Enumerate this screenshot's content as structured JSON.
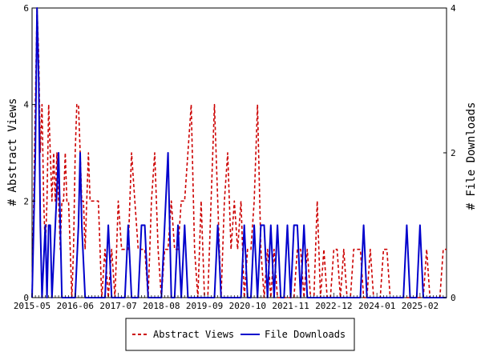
{
  "chart_data": {
    "type": "line",
    "title": "",
    "xlabel": "",
    "ylabel_left": "# Abstract Views",
    "ylabel_right": "# File Downloads",
    "x_tick_labels": [
      "2015-05",
      "2016-06",
      "2017-07",
      "2018-08",
      "2019-09",
      "2020-10",
      "2021-11",
      "2022-12",
      "2024-01",
      "2025-02"
    ],
    "y_left": {
      "ylim": [
        0,
        6
      ],
      "ticks": [
        0,
        2,
        4,
        6
      ]
    },
    "y_right": {
      "ylim": [
        0,
        4
      ],
      "ticks": [
        0,
        2,
        4
      ]
    },
    "x_months_span": [
      0,
      125
    ],
    "legend_position": "bottom-center",
    "grid": false,
    "series": [
      {
        "name": "Abstract Views",
        "axis": "left",
        "color": "#cc0000",
        "style": "dashed",
        "values": [
          [
            0,
            0
          ],
          [
            1,
            4
          ],
          [
            1.5,
            6
          ],
          [
            2,
            5
          ],
          [
            2.5,
            3
          ],
          [
            3,
            4
          ],
          [
            3.5,
            2
          ],
          [
            4,
            1
          ],
          [
            4.5,
            2
          ],
          [
            5,
            4
          ],
          [
            5.5,
            3
          ],
          [
            6,
            2
          ],
          [
            6.5,
            3
          ],
          [
            7,
            2
          ],
          [
            7.5,
            3
          ],
          [
            8,
            2
          ],
          [
            8.5,
            1
          ],
          [
            9,
            2
          ],
          [
            9.5,
            2
          ],
          [
            10,
            3
          ],
          [
            10.5,
            2
          ],
          [
            11,
            2
          ],
          [
            11.5,
            1
          ],
          [
            12,
            0
          ],
          [
            12.5,
            1
          ],
          [
            13,
            3
          ],
          [
            13.5,
            4
          ],
          [
            14,
            4
          ],
          [
            14.5,
            3
          ],
          [
            15,
            2
          ],
          [
            15.5,
            2
          ],
          [
            16,
            1
          ],
          [
            16.5,
            2
          ],
          [
            17,
            3
          ],
          [
            17.5,
            2
          ],
          [
            18,
            2
          ],
          [
            19,
            2
          ],
          [
            20,
            2
          ],
          [
            21,
            0
          ],
          [
            22,
            1
          ],
          [
            23,
            0
          ],
          [
            24,
            1
          ],
          [
            25,
            0
          ],
          [
            26,
            2
          ],
          [
            27,
            1
          ],
          [
            28,
            1
          ],
          [
            29,
            1
          ],
          [
            30,
            3
          ],
          [
            31,
            2
          ],
          [
            32,
            1
          ],
          [
            33,
            1
          ],
          [
            34,
            1
          ],
          [
            35,
            0
          ],
          [
            36,
            2
          ],
          [
            37,
            3
          ],
          [
            38,
            1
          ],
          [
            39,
            0
          ],
          [
            40,
            1
          ],
          [
            41,
            1
          ],
          [
            42,
            2
          ],
          [
            43,
            1
          ],
          [
            44,
            1
          ],
          [
            45,
            2
          ],
          [
            46,
            2
          ],
          [
            47,
            3
          ],
          [
            48,
            4
          ],
          [
            49,
            1
          ],
          [
            50,
            0
          ],
          [
            51,
            2
          ],
          [
            52,
            0
          ],
          [
            53,
            0
          ],
          [
            54,
            2
          ],
          [
            55,
            4
          ],
          [
            56,
            2
          ],
          [
            57,
            0
          ],
          [
            58,
            2
          ],
          [
            59,
            3
          ],
          [
            60,
            1
          ],
          [
            61,
            2
          ],
          [
            62,
            1
          ],
          [
            63,
            2
          ],
          [
            64,
            0
          ],
          [
            65,
            1
          ],
          [
            66,
            1
          ],
          [
            67,
            2
          ],
          [
            68,
            4
          ],
          [
            69,
            1
          ],
          [
            70,
            0
          ],
          [
            71,
            1
          ],
          [
            72,
            0
          ],
          [
            73,
            1
          ],
          [
            74,
            0
          ],
          [
            75,
            0
          ],
          [
            76,
            0
          ],
          [
            77,
            0
          ],
          [
            78,
            0
          ],
          [
            79,
            0
          ],
          [
            80,
            1
          ],
          [
            81,
            1
          ],
          [
            82,
            0
          ],
          [
            83,
            1
          ],
          [
            84,
            0
          ],
          [
            85,
            0
          ],
          [
            86,
            2
          ],
          [
            87,
            0
          ],
          [
            88,
            1
          ],
          [
            89,
            0
          ],
          [
            90,
            0
          ],
          [
            91,
            1
          ],
          [
            92,
            1
          ],
          [
            93,
            0
          ],
          [
            94,
            1
          ],
          [
            95,
            0
          ],
          [
            96,
            0
          ],
          [
            97,
            1
          ],
          [
            98,
            1
          ],
          [
            99,
            1
          ],
          [
            100,
            0
          ],
          [
            101,
            0
          ],
          [
            102,
            1
          ],
          [
            103,
            0
          ],
          [
            104,
            0
          ],
          [
            105,
            0
          ],
          [
            106,
            1
          ],
          [
            107,
            1
          ],
          [
            108,
            0
          ],
          [
            109,
            0
          ],
          [
            110,
            0
          ],
          [
            111,
            0
          ],
          [
            112,
            0
          ],
          [
            113,
            0
          ],
          [
            114,
            0
          ],
          [
            115,
            0
          ],
          [
            116,
            0
          ],
          [
            117,
            0
          ],
          [
            118,
            0
          ],
          [
            119,
            1
          ],
          [
            120,
            0
          ],
          [
            121,
            0
          ],
          [
            122,
            0
          ],
          [
            123,
            0
          ],
          [
            124,
            1
          ],
          [
            125,
            1
          ]
        ]
      },
      {
        "name": "File Downloads",
        "axis": "right",
        "color": "#0000cc",
        "style": "solid",
        "values": [
          [
            0,
            0
          ],
          [
            1,
            2
          ],
          [
            1.5,
            4
          ],
          [
            2,
            3
          ],
          [
            2.5,
            1
          ],
          [
            3,
            0
          ],
          [
            4,
            1
          ],
          [
            4.5,
            0
          ],
          [
            5,
            1
          ],
          [
            5.5,
            1
          ],
          [
            6,
            0
          ],
          [
            7,
            1
          ],
          [
            8,
            2
          ],
          [
            8.5,
            1
          ],
          [
            9,
            0
          ],
          [
            10,
            0
          ],
          [
            11,
            0
          ],
          [
            12,
            0
          ],
          [
            13,
            0
          ],
          [
            14,
            1
          ],
          [
            14.5,
            2
          ],
          [
            15,
            1
          ],
          [
            16,
            0
          ],
          [
            17,
            0
          ],
          [
            18,
            0
          ],
          [
            19,
            0
          ],
          [
            20,
            0
          ],
          [
            21,
            0
          ],
          [
            22,
            0
          ],
          [
            23,
            1
          ],
          [
            24,
            0
          ],
          [
            25,
            0
          ],
          [
            26,
            0
          ],
          [
            27,
            0
          ],
          [
            28,
            0
          ],
          [
            29,
            1
          ],
          [
            30,
            0
          ],
          [
            31,
            0
          ],
          [
            32,
            0
          ],
          [
            33,
            1
          ],
          [
            34,
            1
          ],
          [
            35,
            0
          ],
          [
            36,
            0
          ],
          [
            37,
            0
          ],
          [
            38,
            0
          ],
          [
            39,
            0
          ],
          [
            40,
            1
          ],
          [
            41,
            2
          ],
          [
            42,
            0
          ],
          [
            43,
            0
          ],
          [
            44,
            1
          ],
          [
            45,
            0
          ],
          [
            46,
            1
          ],
          [
            47,
            0
          ],
          [
            48,
            0
          ],
          [
            49,
            0
          ],
          [
            50,
            0
          ],
          [
            51,
            0
          ],
          [
            52,
            0
          ],
          [
            53,
            0
          ],
          [
            54,
            0
          ],
          [
            55,
            0
          ],
          [
            56,
            1
          ],
          [
            57,
            0
          ],
          [
            58,
            0
          ],
          [
            59,
            0
          ],
          [
            60,
            0
          ],
          [
            61,
            0
          ],
          [
            62,
            0
          ],
          [
            63,
            0
          ],
          [
            64,
            1
          ],
          [
            65,
            0
          ],
          [
            66,
            0
          ],
          [
            67,
            1
          ],
          [
            68,
            0
          ],
          [
            69,
            1
          ],
          [
            70,
            1
          ],
          [
            71,
            0
          ],
          [
            72,
            1
          ],
          [
            73,
            0
          ],
          [
            74,
            1
          ],
          [
            75,
            0
          ],
          [
            76,
            0
          ],
          [
            77,
            1
          ],
          [
            78,
            0
          ],
          [
            79,
            1
          ],
          [
            80,
            1
          ],
          [
            81,
            0
          ],
          [
            82,
            1
          ],
          [
            83,
            0
          ],
          [
            84,
            0
          ],
          [
            85,
            0
          ],
          [
            86,
            0
          ],
          [
            87,
            0
          ],
          [
            88,
            0
          ],
          [
            89,
            0
          ],
          [
            90,
            0
          ],
          [
            91,
            0
          ],
          [
            92,
            0
          ],
          [
            93,
            0
          ],
          [
            94,
            0
          ],
          [
            95,
            0
          ],
          [
            96,
            0
          ],
          [
            97,
            0
          ],
          [
            98,
            0
          ],
          [
            99,
            0
          ],
          [
            100,
            1
          ],
          [
            101,
            0
          ],
          [
            102,
            0
          ],
          [
            103,
            0
          ],
          [
            104,
            0
          ],
          [
            105,
            0
          ],
          [
            106,
            0
          ],
          [
            107,
            0
          ],
          [
            108,
            0
          ],
          [
            109,
            0
          ],
          [
            110,
            0
          ],
          [
            111,
            0
          ],
          [
            112,
            0
          ],
          [
            113,
            1
          ],
          [
            114,
            0
          ],
          [
            115,
            0
          ],
          [
            116,
            0
          ],
          [
            117,
            1
          ],
          [
            118,
            0
          ],
          [
            119,
            0
          ],
          [
            120,
            0
          ],
          [
            121,
            0
          ],
          [
            122,
            0
          ],
          [
            123,
            0
          ],
          [
            124,
            0
          ],
          [
            125,
            0
          ]
        ]
      }
    ]
  }
}
